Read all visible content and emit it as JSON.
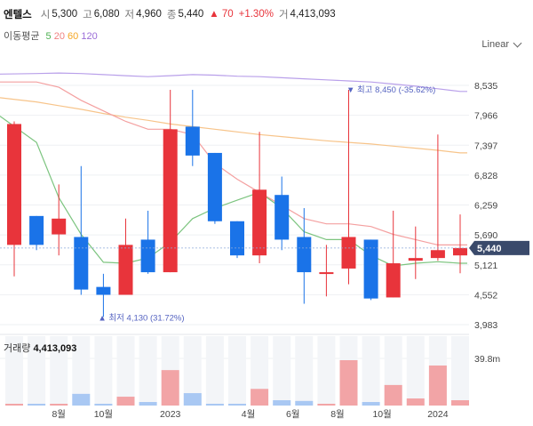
{
  "stock": {
    "name": "엔텔스",
    "open_label": "시",
    "open": "5,300",
    "high_label": "고",
    "high": "6,080",
    "low_label": "저",
    "low": "4,960",
    "close_label": "종",
    "close": "5,440",
    "change": "▲ 70",
    "change_pct": "+1.30%",
    "volume_label": "거",
    "volume": "4,413,093"
  },
  "ma_legend": {
    "title": "이동평균",
    "periods": [
      {
        "label": "5",
        "color": "#4caf50"
      },
      {
        "label": "20",
        "color": "#f08080"
      },
      {
        "label": "60",
        "color": "#f5a623"
      },
      {
        "label": "120",
        "color": "#9b6dd8"
      }
    ]
  },
  "scale_selector": {
    "label": "Linear"
  },
  "colors": {
    "up": "#e8343b",
    "down": "#1a73e8",
    "up_vol": "#f2a4a6",
    "down_vol": "#a9c8f3"
  },
  "chart_data": {
    "type": "candlestick",
    "y_ticks": [
      "8,535",
      "7,966",
      "7,397",
      "6,828",
      "6,259",
      "5,690",
      "5,121",
      "4,552",
      "3,983"
    ],
    "y_range": [
      3983,
      8535
    ],
    "x_ticks": [
      {
        "label": "8월",
        "index": 2
      },
      {
        "label": "10월",
        "index": 4
      },
      {
        "label": "2023",
        "index": 7
      },
      {
        "label": "4월",
        "index": 10.5
      },
      {
        "label": "6월",
        "index": 12.5
      },
      {
        "label": "8월",
        "index": 14.5
      },
      {
        "label": "10월",
        "index": 16.5
      },
      {
        "label": "2024",
        "index": 19
      }
    ],
    "candles": [
      {
        "o": 5500,
        "h": 7850,
        "l": 4900,
        "c": 7800,
        "v": 0.05
      },
      {
        "o": 6050,
        "h": 6050,
        "l": 5400,
        "c": 5500,
        "v": 0.02
      },
      {
        "o": 5700,
        "h": 6650,
        "l": 5300,
        "c": 6000,
        "v": 0.05
      },
      {
        "o": 5650,
        "h": 7000,
        "l": 4550,
        "c": 4650,
        "v": 0.33
      },
      {
        "o": 4700,
        "h": 4950,
        "l": 4130,
        "c": 4550,
        "v": 0.04
      },
      {
        "o": 4550,
        "h": 6000,
        "l": 4550,
        "c": 5500,
        "v": 0.25
      },
      {
        "o": 5600,
        "h": 6150,
        "l": 4950,
        "c": 4980,
        "v": 0.1
      },
      {
        "o": 4980,
        "h": 8450,
        "l": 4980,
        "c": 7700,
        "v": 1.0
      },
      {
        "o": 7750,
        "h": 8450,
        "l": 7000,
        "c": 7200,
        "v": 0.35
      },
      {
        "o": 7250,
        "h": 7250,
        "l": 5900,
        "c": 5950,
        "v": 0.04
      },
      {
        "o": 5950,
        "h": 5950,
        "l": 5250,
        "c": 5300,
        "v": 0.04
      },
      {
        "o": 5300,
        "h": 7650,
        "l": 5150,
        "c": 6550,
        "v": 0.47
      },
      {
        "o": 6450,
        "h": 6800,
        "l": 5400,
        "c": 5600,
        "v": 0.15
      },
      {
        "o": 5650,
        "h": 6200,
        "l": 4380,
        "c": 4980,
        "v": 0.13
      },
      {
        "o": 4950,
        "h": 5500,
        "l": 4520,
        "c": 4980,
        "v": 0.05
      },
      {
        "o": 5050,
        "h": 8450,
        "l": 4750,
        "c": 5650,
        "v": 1.28
      },
      {
        "o": 5600,
        "h": 5600,
        "l": 4450,
        "c": 4480,
        "v": 0.1
      },
      {
        "o": 4500,
        "h": 6150,
        "l": 4500,
        "c": 5150,
        "v": 0.58
      },
      {
        "o": 5200,
        "h": 5850,
        "l": 4850,
        "c": 5250,
        "v": 0.2
      },
      {
        "o": 5250,
        "h": 7600,
        "l": 5200,
        "c": 5400,
        "v": 1.13
      },
      {
        "o": 5300,
        "h": 6080,
        "l": 4960,
        "c": 5440,
        "v": 0.15
      }
    ],
    "ma5": [
      7950,
      7450,
      6400,
      5700,
      5170,
      5150,
      5250,
      5550,
      6000,
      6200,
      6350,
      6500,
      6200,
      5750,
      5600,
      5600,
      5300,
      5100,
      5150,
      5180,
      5150
    ],
    "ma20": [
      8600,
      8600,
      8500,
      8250,
      8050,
      7850,
      7700,
      7700,
      7600,
      7050,
      6750,
      6500,
      6250,
      6000,
      5900,
      5900,
      5850,
      5700,
      5600,
      5500,
      5500
    ],
    "ma60": [
      8300,
      8220,
      8150,
      8080,
      8000,
      7930,
      7870,
      7800,
      7750,
      7700,
      7650,
      7600,
      7560,
      7520,
      7480,
      7450,
      7420,
      7380,
      7340,
      7300,
      7250
    ],
    "ma120": [
      8750,
      8760,
      8770,
      8760,
      8740,
      8720,
      8700,
      8720,
      8740,
      8730,
      8710,
      8700,
      8680,
      8660,
      8640,
      8620,
      8600,
      8560,
      8520,
      8470,
      8420
    ],
    "last_price_label": "5,440",
    "max_annotation": "▼ 최고 8,450 (-35.62%)",
    "min_annotation": "▲ 최저 4,130 (31.72%)",
    "volume_title": "거래량",
    "volume_value": "4,413,093",
    "volume_max_label": "39.8m"
  }
}
